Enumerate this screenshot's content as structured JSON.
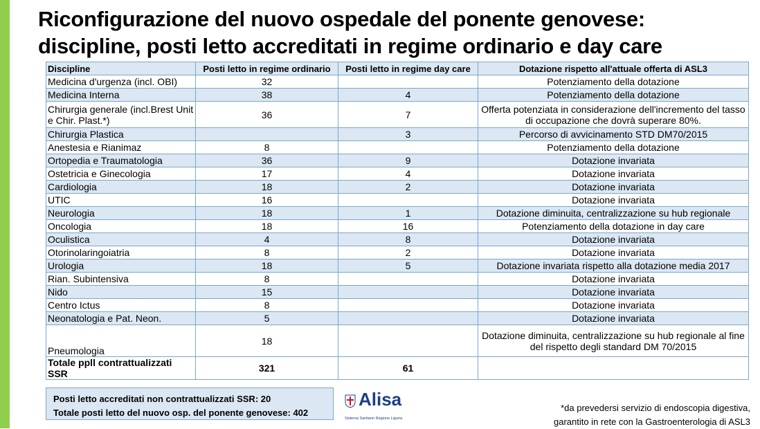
{
  "title": {
    "line1": "Riconfigurazione  del nuovo ospedale del ponente genovese:",
    "line2": "discipline, posti letto accreditati in regime ordinario e day care"
  },
  "table": {
    "headers": [
      "Discipline",
      "Posti letto in regime ordinario",
      "Posti letto in regime day care",
      "Dotazione rispetto all'attuale offerta di ASL3"
    ],
    "rows": [
      {
        "discipline": "Medicina d'urgenza (incl. OBI)",
        "ordinario": "32",
        "daycare": "",
        "dotazione": "Potenziamento della dotazione"
      },
      {
        "discipline": "Medicina Interna",
        "ordinario": "38",
        "daycare": "4",
        "dotazione": "Potenziamento della dotazione"
      },
      {
        "discipline": "Chirurgia generale (incl.Brest Unit e Chir. Plast.*)",
        "ordinario": "36",
        "daycare": "7",
        "dotazione": "Offerta potenziata in considerazione dell'incremento del tasso di occupazione che dovrà superare 80%."
      },
      {
        "discipline": "Chirurgia Plastica",
        "ordinario": "",
        "daycare": "3",
        "dotazione": "Percorso di avvicinamento STD DM70/2015"
      },
      {
        "discipline": "Anestesia e Rianimaz",
        "ordinario": "8",
        "daycare": "",
        "dotazione": "Potenziamento della dotazione"
      },
      {
        "discipline": "Ortopedia e Traumatologia",
        "ordinario": "36",
        "daycare": "9",
        "dotazione": "Dotazione invariata"
      },
      {
        "discipline": "Ostetricia e Ginecologia",
        "ordinario": "17",
        "daycare": "4",
        "dotazione": "Dotazione invariata"
      },
      {
        "discipline": "Cardiologia",
        "ordinario": "18",
        "daycare": "2",
        "dotazione": "Dotazione invariata"
      },
      {
        "discipline": "UTIC",
        "ordinario": "16",
        "daycare": "",
        "dotazione": "Dotazione invariata"
      },
      {
        "discipline": "Neurologia",
        "ordinario": "18",
        "daycare": "1",
        "dotazione": "Dotazione diminuita, centralizzazione su hub regionale"
      },
      {
        "discipline": "Oncologia",
        "ordinario": "18",
        "daycare": "16",
        "dotazione": "Potenziamento della dotazione in day care"
      },
      {
        "discipline": "Oculistica",
        "ordinario": "4",
        "daycare": "8",
        "dotazione": "Dotazione invariata"
      },
      {
        "discipline": "Otorinolaringoiatria",
        "ordinario": "8",
        "daycare": "2",
        "dotazione": "Dotazione invariata"
      },
      {
        "discipline": "Urologia",
        "ordinario": "18",
        "daycare": "5",
        "dotazione": "Dotazione invariata rispetto alla dotazione media 2017"
      },
      {
        "discipline": "Rian. Subintensiva",
        "ordinario": "8",
        "daycare": "",
        "dotazione": "Dotazione invariata"
      },
      {
        "discipline": "Nido",
        "ordinario": "15",
        "daycare": "",
        "dotazione": "Dotazione invariata"
      },
      {
        "discipline": "Centro Ictus",
        "ordinario": "8",
        "daycare": "",
        "dotazione": "Dotazione invariata"
      },
      {
        "discipline": "Neonatologia e Pat. Neon.",
        "ordinario": "5",
        "daycare": "",
        "dotazione": "Dotazione invariata"
      },
      {
        "discipline": "Pneumologia",
        "ordinario": "18",
        "daycare": "",
        "dotazione": "Dotazione diminuita, centralizzazione su hub regionale al fine del rispetto degli standard DM 70/2015"
      }
    ],
    "total": {
      "discipline": "Totale ppll contrattualizzati SSR",
      "ordinario": "321",
      "daycare": "61",
      "dotazione": ""
    }
  },
  "summary": {
    "line1": "Posti letto accreditati non contrattualizzati SSR:  20",
    "line2": "Totale posti letto del nuovo osp. del ponente genovese: 402"
  },
  "logo": {
    "name": "Alisa",
    "subtitle": "Sistema Sanitario Regione Liguria"
  },
  "footnote": {
    "line1": "*da prevedersi servizio di endoscopia digestiva,",
    "line2": "garantito in rete con la Gastroenterologia di ASL3"
  },
  "colors": {
    "accent_bar": "#8fcf4d",
    "row_alt": "#dbe7f3",
    "border": "#7aa7cc",
    "logo": "#1d3f86"
  }
}
